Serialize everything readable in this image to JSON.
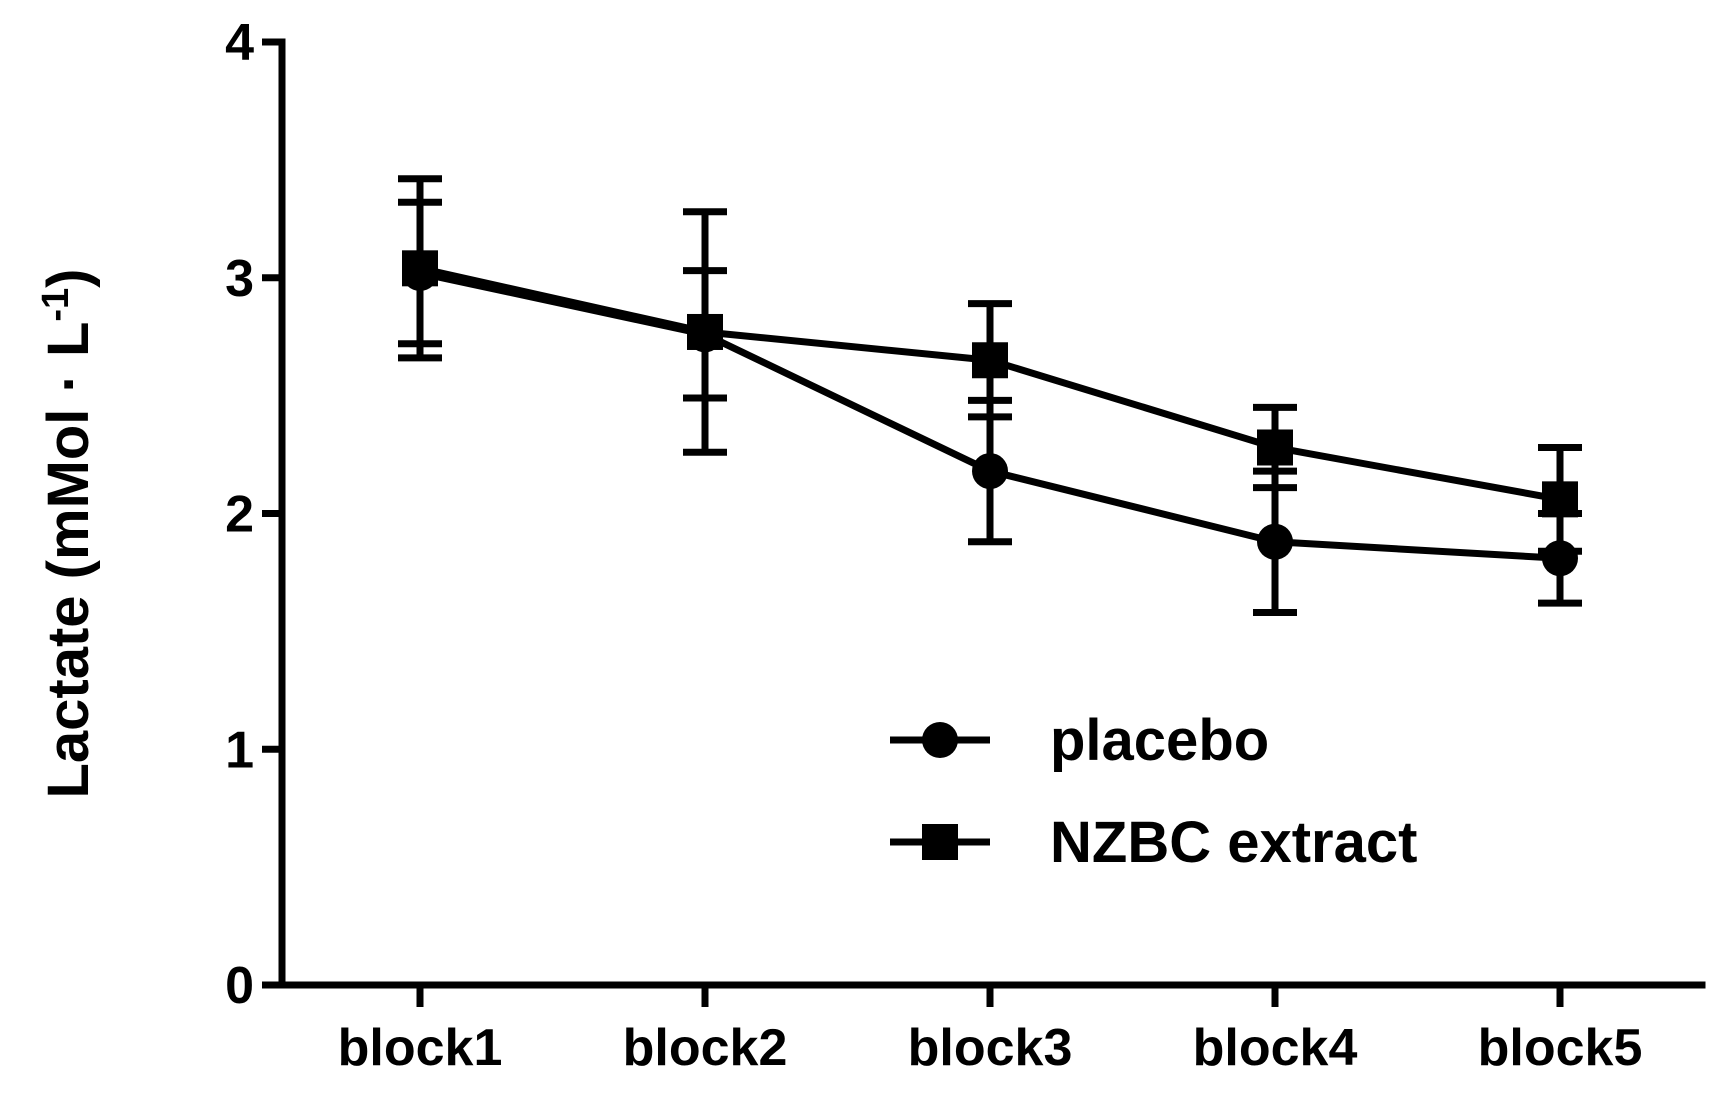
{
  "chart_data": {
    "type": "line",
    "title": "",
    "xlabel": "",
    "ylabel": "Lactate (mMol · L",
    "ylabel_superscript": "-1",
    "ylabel_suffix": ")",
    "categories": [
      "block1",
      "block2",
      "block3",
      "block4",
      "block5"
    ],
    "ylim": [
      0,
      4
    ],
    "yticks": [
      "0",
      "1",
      "2",
      "3",
      "4"
    ],
    "grid": false,
    "legend": "bottom-right",
    "series": [
      {
        "name": "placebo",
        "marker": "circle",
        "values": [
          3.02,
          2.76,
          2.18,
          1.88,
          1.81
        ],
        "errors": [
          0.3,
          0.27,
          0.3,
          0.3,
          0.19
        ]
      },
      {
        "name": "NZBC extract",
        "marker": "square",
        "values": [
          3.04,
          2.77,
          2.65,
          2.28,
          2.06
        ],
        "errors": [
          0.38,
          0.51,
          0.24,
          0.17,
          0.22
        ]
      }
    ]
  }
}
